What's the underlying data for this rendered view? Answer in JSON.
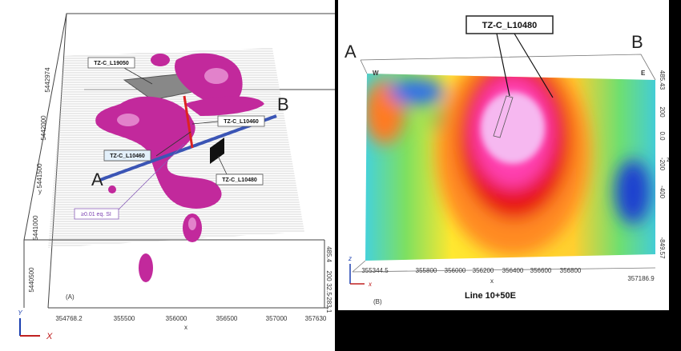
{
  "panel_a": {
    "label": "(A)",
    "point_a": "A",
    "point_b": "B",
    "legend": "≥0.01 eq. SI",
    "callouts": [
      "TZ-C_L19050",
      "TZ-C_L10460",
      "TZ-C_L10460",
      "TZ-C_L10480"
    ],
    "x_axis": "x",
    "x_ticks": [
      "354768.2",
      "355500",
      "356000",
      "356500",
      "357000",
      "357630"
    ],
    "y_axis": "y",
    "y_ticks": [
      "5442974",
      "5442000",
      "5441500",
      "5441000",
      "5440500"
    ],
    "z_ticks": [
      "-283.1",
      "32.5",
      "200",
      "485.4"
    ],
    "axis_icons": [
      "Y",
      "X"
    ]
  },
  "panel_b": {
    "label": "(B)",
    "caption": "Line 10+50E",
    "callout": "TZ-C_L10480",
    "point_a": "A",
    "point_b": "B",
    "west": "W",
    "east": "E",
    "z_axis": "z",
    "z_ticks": [
      "485.43",
      "200",
      "0.0",
      "-200",
      "-400",
      "-849.57"
    ],
    "x_axis": "x",
    "x_ticks": [
      "355344.5",
      "355800",
      "356000",
      "356200",
      "356400",
      "356600",
      "356800",
      "357186.9"
    ],
    "axis_icons": [
      "z",
      "x"
    ]
  }
}
